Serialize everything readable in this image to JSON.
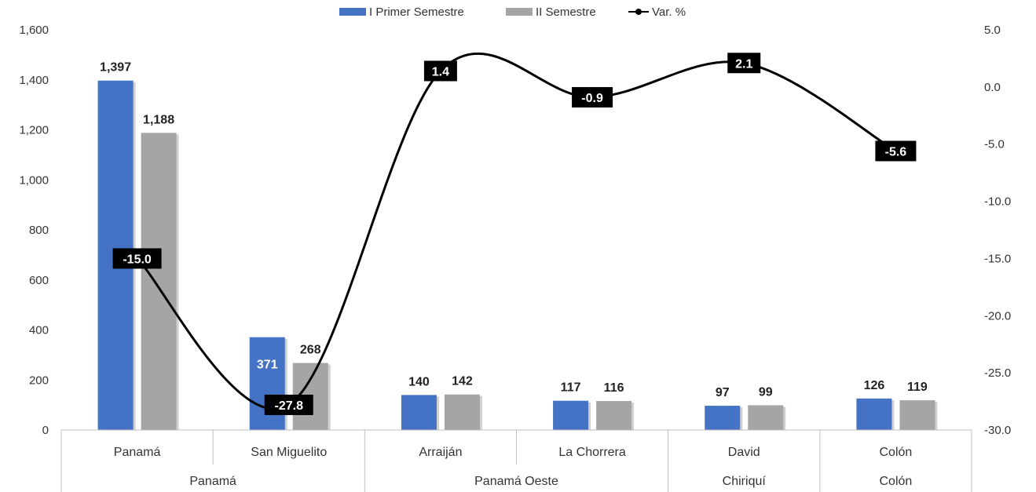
{
  "legend": {
    "series1": "I Primer Semestre",
    "series2": "II Semestre",
    "series3": "Var. %"
  },
  "colors": {
    "series1": "#4472C4",
    "series2": "#A5A5A5",
    "line": "#000000",
    "label_box": "#000000"
  },
  "chart_data": {
    "type": "bar",
    "categories": [
      "Panamá",
      "San Miguelito",
      "Arraiján",
      "La Chorrera",
      "David",
      "Colón"
    ],
    "groups": [
      {
        "label": "Panamá",
        "span": 2
      },
      {
        "label": "Panamá Oeste",
        "span": 2
      },
      {
        "label": "Chiriquí",
        "span": 1
      },
      {
        "label": "Colón",
        "span": 1
      }
    ],
    "series": [
      {
        "name": "I Primer Semestre",
        "values": [
          1397,
          371,
          140,
          117,
          97,
          126
        ],
        "labels": [
          "1,397",
          "371",
          "140",
          "117",
          "97",
          "126"
        ]
      },
      {
        "name": "II Semestre",
        "values": [
          1188,
          268,
          142,
          116,
          99,
          119
        ],
        "labels": [
          "1,188",
          "268",
          "142",
          "116",
          "99",
          "119"
        ]
      }
    ],
    "line_series": {
      "name": "Var. %",
      "values": [
        -15.0,
        -27.8,
        1.4,
        -0.9,
        2.1,
        -5.6
      ],
      "labels": [
        "-15.0",
        "-27.8",
        "1.4",
        "-0.9",
        "2.1",
        "-5.6"
      ]
    },
    "ylim_left": [
      0,
      1600
    ],
    "yticks_left": [
      "0",
      "200",
      "400",
      "600",
      "800",
      "1,000",
      "1,200",
      "1,400",
      "1,600"
    ],
    "ylim_right": [
      -30,
      5
    ],
    "yticks_right": [
      "-30.0",
      "-25.0",
      "-20.0",
      "-15.0",
      "-10.0",
      "-5.0",
      "0.0",
      "5.0"
    ],
    "legend_position": "top-center",
    "grid": false
  }
}
